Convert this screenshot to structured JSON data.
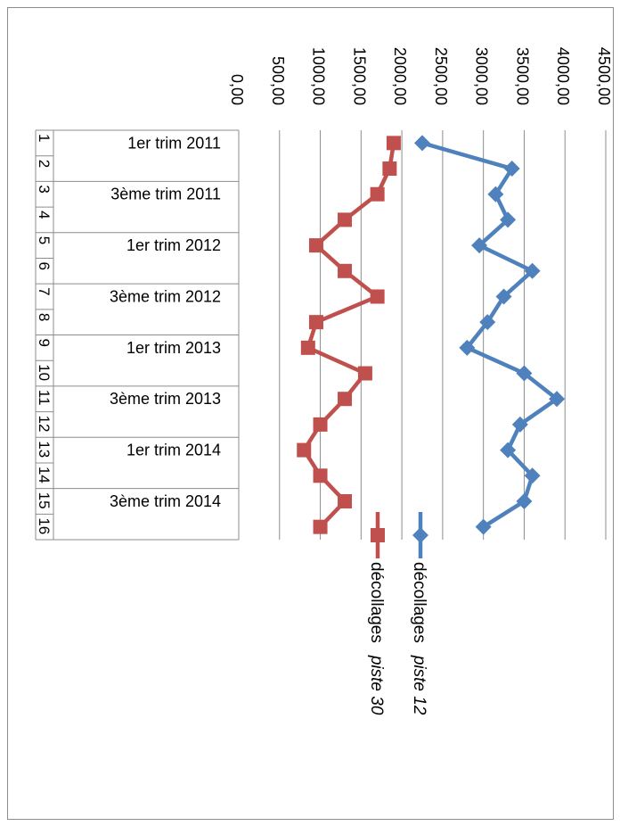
{
  "chart_data": {
    "type": "line",
    "orientation": "rotated-90-clockwise",
    "title": "",
    "xlabel": "",
    "ylabel": "",
    "ylim": [
      0,
      4500
    ],
    "y_ticks": [
      "0,00",
      "500,00",
      "1000,00",
      "1500,00",
      "2000,00",
      "2500,00",
      "3000,00",
      "3500,00",
      "4000,00",
      "4500,00"
    ],
    "grid": true,
    "legend_position": "bottom",
    "categories": [
      "1er trim 2011",
      "",
      "3ème trim 2011",
      "",
      "1er trim 2012",
      "",
      "3ème trim 2012",
      "",
      "1er trim 2013",
      "",
      "3ème trim 2013",
      "",
      "1er trim 2014",
      "",
      "3ème trim 2014",
      ""
    ],
    "row_numbers": [
      "1",
      "2",
      "3",
      "4",
      "5",
      "6",
      "7",
      "8",
      "9",
      "10",
      "11",
      "12",
      "13",
      "14",
      "15",
      "16"
    ],
    "series": [
      {
        "name": "décollages piste 12",
        "name_parts": [
          "décollages",
          "piste 12"
        ],
        "color": "#4F81BD",
        "marker": "diamond",
        "values": [
          2250,
          3350,
          3150,
          3300,
          2950,
          3600,
          3250,
          3050,
          2800,
          3500,
          3900,
          3450,
          3300,
          3600,
          3500,
          3000
        ]
      },
      {
        "name": "décollages piste 30",
        "name_parts": [
          "décollages",
          "piste 30"
        ],
        "color": "#C0504D",
        "marker": "square",
        "values": [
          1900,
          1850,
          1700,
          1300,
          950,
          1300,
          1700,
          950,
          850,
          1550,
          1300,
          1000,
          800,
          1000,
          1300,
          1000
        ]
      }
    ]
  }
}
